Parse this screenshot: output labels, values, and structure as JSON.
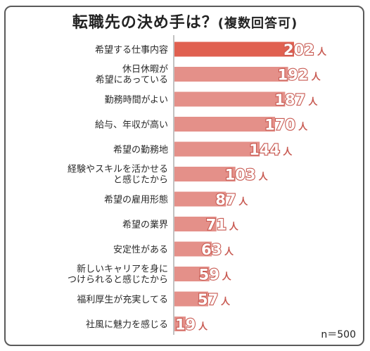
{
  "chart_data": {
    "type": "bar",
    "orientation": "horizontal",
    "title": "転職先の決め手は？",
    "subtitle": "(複数回答可)",
    "unit": "人",
    "note": "n＝500",
    "categories": [
      [
        "希望する仕事内容"
      ],
      [
        "休日休暇が",
        "希望にあっている"
      ],
      [
        "勤務時間がよい"
      ],
      [
        "給与、年収が高い"
      ],
      [
        "希望の勤務地"
      ],
      [
        "経験やスキルを活かせる",
        "と感じたから"
      ],
      [
        "希望の雇用形態"
      ],
      [
        "希望の業界"
      ],
      [
        "安定性がある"
      ],
      [
        "新しいキャリアを身に",
        "つけられると感じたから"
      ],
      [
        "福利厚生が充実してる"
      ],
      [
        "社風に魅力を感じる"
      ]
    ],
    "values": [
      202,
      192,
      187,
      170,
      144,
      103,
      87,
      71,
      63,
      59,
      57,
      19
    ],
    "colors": {
      "top": "#e06050",
      "bar": "#e49089",
      "stroke": "#c85a52",
      "divider": "#999999"
    }
  }
}
